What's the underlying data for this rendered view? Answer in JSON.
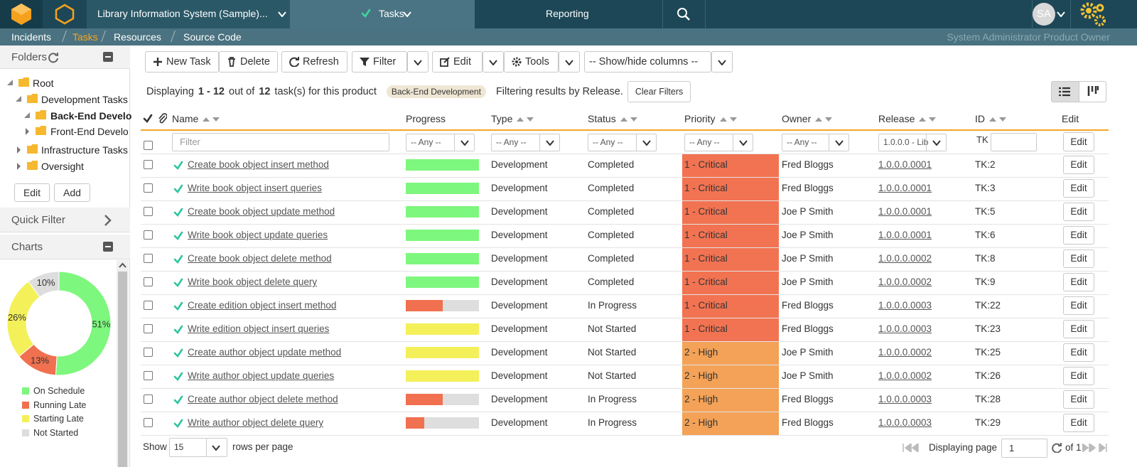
{
  "nav": {
    "product": "Library Information System (Sample)...",
    "tabs": [
      "Tasks",
      "Reporting"
    ],
    "avatar": "SA"
  },
  "breadcrumb": {
    "items": [
      "Incidents",
      "Tasks",
      "Resources",
      "Source Code"
    ],
    "user": "System Administrator Product Owner"
  },
  "sidebar": {
    "folders_title": "Folders",
    "tree": [
      "Root",
      "Development Tasks",
      "Back-End Develo",
      "Front-End Develo",
      "Infrastructure Tasks",
      "Oversight"
    ],
    "buttons": [
      "Edit",
      "Add"
    ],
    "quick_filter": "Quick Filter",
    "charts": "Charts"
  },
  "chart_data": {
    "type": "pie",
    "categories": [
      "On Schedule",
      "Running Late",
      "Starting Late",
      "Not Started"
    ],
    "values": [
      51,
      13,
      26,
      10
    ],
    "value_labels": [
      "51%",
      "13%",
      "26%",
      "10%"
    ],
    "colors": [
      "#7df77d",
      "#f0704f",
      "#f4f05a",
      "#dddddd"
    ]
  },
  "toolbar": [
    "New Task",
    "Delete",
    "Refresh",
    "Filter",
    "Edit",
    "Tools",
    "-- Show/hide columns --"
  ],
  "summary": {
    "prefix": "Displaying",
    "range": "1 - 12",
    "mid": "out of",
    "total": "12",
    "suffix": "task(s) for this product",
    "product": "Back-End Development",
    "filter_note": "Filtering results by Release.",
    "clear": "Clear Filters"
  },
  "table": {
    "columns": [
      "Name",
      "Progress",
      "Type",
      "Status",
      "Priority",
      "Owner",
      "Release",
      "ID",
      "Edit"
    ],
    "filters": {
      "name": "Filter",
      "any": "-- Any --",
      "release": "1.0.0.0 - Lib",
      "id_prefix": "TK",
      "button": "Edit"
    },
    "row_button": "Edit",
    "rows": [
      {
        "name": "Create book object insert method",
        "progress": 100,
        "progress_color": "#7df77d",
        "type": "Development",
        "status": "Completed",
        "priority": "1 - Critical",
        "priority_color": "#f27352",
        "owner": "Fred Bloggs",
        "release": "1.0.0.0.0001",
        "id": "TK:2"
      },
      {
        "name": "Write book object insert queries",
        "progress": 100,
        "progress_color": "#7df77d",
        "type": "Development",
        "status": "Completed",
        "priority": "1 - Critical",
        "priority_color": "#f27352",
        "owner": "Fred Bloggs",
        "release": "1.0.0.0.0001",
        "id": "TK:3"
      },
      {
        "name": "Create book object update method",
        "progress": 100,
        "progress_color": "#7df77d",
        "type": "Development",
        "status": "Completed",
        "priority": "1 - Critical",
        "priority_color": "#f27352",
        "owner": "Joe P Smith",
        "release": "1.0.0.0.0001",
        "id": "TK:5"
      },
      {
        "name": "Write book object update queries",
        "progress": 100,
        "progress_color": "#7df77d",
        "type": "Development",
        "status": "Completed",
        "priority": "1 - Critical",
        "priority_color": "#f27352",
        "owner": "Joe P Smith",
        "release": "1.0.0.0.0001",
        "id": "TK:6"
      },
      {
        "name": "Create book object delete method",
        "progress": 100,
        "progress_color": "#7df77d",
        "type": "Development",
        "status": "Completed",
        "priority": "1 - Critical",
        "priority_color": "#f27352",
        "owner": "Joe P Smith",
        "release": "1.0.0.0.0002",
        "id": "TK:8"
      },
      {
        "name": "Write book object delete query",
        "progress": 100,
        "progress_color": "#7df77d",
        "type": "Development",
        "status": "Completed",
        "priority": "1 - Critical",
        "priority_color": "#f27352",
        "owner": "Joe P Smith",
        "release": "1.0.0.0.0002",
        "id": "TK:9"
      },
      {
        "name": "Create edition object insert method",
        "progress": 50,
        "progress_color": "#f0704f",
        "type": "Development",
        "status": "In Progress",
        "priority": "1 - Critical",
        "priority_color": "#f27352",
        "owner": "Fred Bloggs",
        "release": "1.0.0.0.0003",
        "id": "TK:22"
      },
      {
        "name": "Write edition object insert queries",
        "progress": 100,
        "progress_color": "#f4f05a",
        "type": "Development",
        "status": "Not Started",
        "priority": "1 - Critical",
        "priority_color": "#f27352",
        "owner": "Fred Bloggs",
        "release": "1.0.0.0.0003",
        "id": "TK:23"
      },
      {
        "name": "Create author object update method",
        "progress": 100,
        "progress_color": "#f4f05a",
        "type": "Development",
        "status": "Not Started",
        "priority": "2 - High",
        "priority_color": "#f3a257",
        "owner": "Joe P Smith",
        "release": "1.0.0.0.0002",
        "id": "TK:25"
      },
      {
        "name": "Write author object update queries",
        "progress": 100,
        "progress_color": "#f4f05a",
        "type": "Development",
        "status": "Not Started",
        "priority": "2 - High",
        "priority_color": "#f3a257",
        "owner": "Joe P Smith",
        "release": "1.0.0.0.0002",
        "id": "TK:26"
      },
      {
        "name": "Create author object delete method",
        "progress": 50,
        "progress_color": "#f0704f",
        "type": "Development",
        "status": "In Progress",
        "priority": "2 - High",
        "priority_color": "#f3a257",
        "owner": "Fred Bloggs",
        "release": "1.0.0.0.0003",
        "id": "TK:28"
      },
      {
        "name": "Write author object delete query",
        "progress": 25,
        "progress_color": "#f0704f",
        "type": "Development",
        "status": "In Progress",
        "priority": "2 - High",
        "priority_color": "#f3a257",
        "owner": "Fred Bloggs",
        "release": "1.0.0.0.0003",
        "id": "TK:29"
      }
    ]
  },
  "pagination": {
    "show": "Show",
    "page_size": "15",
    "rows_label": "rows per page",
    "displaying": "Displaying page",
    "page": "1",
    "of": "of 1"
  }
}
